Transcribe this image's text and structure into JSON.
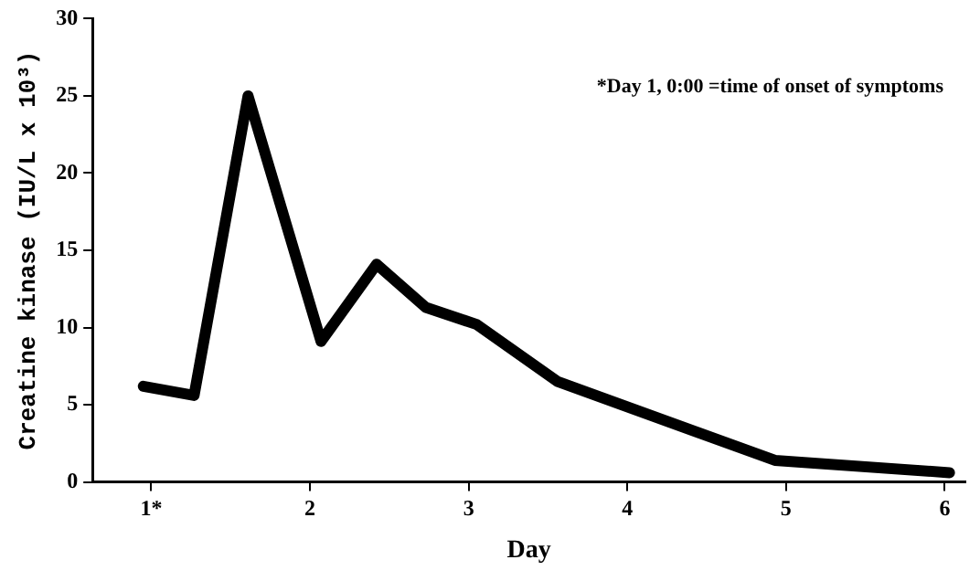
{
  "chart_data": {
    "type": "line",
    "xlabel": "Day",
    "ylabel": "Creatine kinase (IU/L x 10³)",
    "annotations": [
      "*Day 1, 0:00 =time of onset of symptoms"
    ],
    "x": [
      0.95,
      1.27,
      1.61,
      2.07,
      2.42,
      2.73,
      3.05,
      3.56,
      4.93,
      6.03
    ],
    "series": [
      {
        "color": "#000000",
        "values": [
          6.2,
          5.6,
          25.0,
          9.1,
          14.1,
          11.3,
          10.2,
          6.5,
          1.4,
          0.6
        ]
      }
    ],
    "xlim": [
      0.63,
      6.13
    ],
    "xticks": [
      {
        "value": 1,
        "label": "1*"
      },
      2,
      3,
      4,
      5,
      6
    ],
    "ylim": [
      0,
      30
    ],
    "yticks": [
      0,
      5,
      10,
      15,
      20,
      25,
      30
    ],
    "grid": false,
    "legend": false,
    "marker": "none",
    "line_style": "solid"
  }
}
